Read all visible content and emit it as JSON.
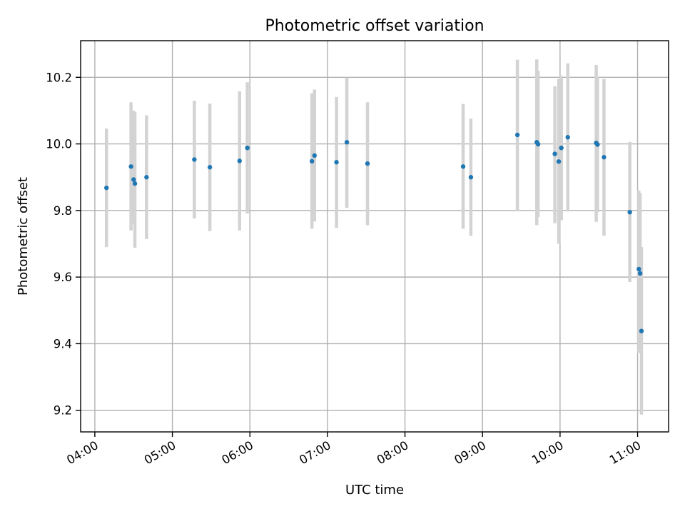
{
  "chart_data": {
    "type": "scatter",
    "title": "Photometric offset variation",
    "xlabel": "UTC time",
    "ylabel": "Photometric offset",
    "xlim": [
      "03:49",
      "11:24"
    ],
    "ylim": [
      9.135,
      10.31
    ],
    "x_ticks": [
      "04:00",
      "05:00",
      "06:00",
      "07:00",
      "08:00",
      "09:00",
      "10:00",
      "11:00"
    ],
    "y_ticks": [
      9.2,
      9.4,
      9.6,
      9.8,
      10.0,
      10.2
    ],
    "y_tick_labels": [
      "9.2",
      "9.4",
      "9.6",
      "9.8",
      "10.0",
      "10.2"
    ],
    "grid": true,
    "marker_color": "#1f77b4",
    "errorbar_color": "#d3d3d3",
    "points": [
      {
        "time": "04:09",
        "y": 9.868,
        "lo": 9.69,
        "hi": 10.046
      },
      {
        "time": "04:28",
        "y": 9.932,
        "lo": 9.74,
        "hi": 10.125
      },
      {
        "time": "04:30",
        "y": 9.893,
        "lo": 9.76,
        "hi": 10.1
      },
      {
        "time": "04:31",
        "y": 9.881,
        "lo": 9.688,
        "hi": 10.095
      },
      {
        "time": "04:40",
        "y": 9.9,
        "lo": 9.714,
        "hi": 10.086
      },
      {
        "time": "05:17",
        "y": 9.953,
        "lo": 9.776,
        "hi": 10.13
      },
      {
        "time": "05:29",
        "y": 9.93,
        "lo": 9.738,
        "hi": 10.121
      },
      {
        "time": "05:52",
        "y": 9.949,
        "lo": 9.74,
        "hi": 10.158
      },
      {
        "time": "05:58",
        "y": 9.988,
        "lo": 9.791,
        "hi": 10.185
      },
      {
        "time": "06:48",
        "y": 9.948,
        "lo": 9.745,
        "hi": 10.152
      },
      {
        "time": "06:50",
        "y": 9.965,
        "lo": 9.767,
        "hi": 10.163
      },
      {
        "time": "07:07",
        "y": 9.945,
        "lo": 9.748,
        "hi": 10.141
      },
      {
        "time": "07:15",
        "y": 10.005,
        "lo": 9.808,
        "hi": 10.199
      },
      {
        "time": "07:31",
        "y": 9.941,
        "lo": 9.756,
        "hi": 10.125
      },
      {
        "time": "08:45",
        "y": 9.932,
        "lo": 9.745,
        "hi": 10.12
      },
      {
        "time": "08:51",
        "y": 9.9,
        "lo": 9.724,
        "hi": 10.076
      },
      {
        "time": "09:27",
        "y": 10.027,
        "lo": 9.8,
        "hi": 10.253
      },
      {
        "time": "09:42",
        "y": 10.005,
        "lo": 9.756,
        "hi": 10.254
      },
      {
        "time": "09:43",
        "y": 9.999,
        "lo": 9.78,
        "hi": 10.22
      },
      {
        "time": "09:56",
        "y": 9.97,
        "lo": 9.762,
        "hi": 10.173
      },
      {
        "time": "09:59",
        "y": 9.947,
        "lo": 9.7,
        "hi": 10.195
      },
      {
        "time": "10:01",
        "y": 9.988,
        "lo": 9.771,
        "hi": 10.205
      },
      {
        "time": "10:06",
        "y": 10.02,
        "lo": 9.797,
        "hi": 10.242
      },
      {
        "time": "10:28",
        "y": 10.003,
        "lo": 9.766,
        "hi": 10.237
      },
      {
        "time": "10:29",
        "y": 9.998,
        "lo": 9.795,
        "hi": 10.2
      },
      {
        "time": "10:34",
        "y": 9.96,
        "lo": 9.724,
        "hi": 10.195
      },
      {
        "time": "10:54",
        "y": 9.795,
        "lo": 9.585,
        "hi": 10.006
      },
      {
        "time": "11:01",
        "y": 9.624,
        "lo": 9.372,
        "hi": 9.86
      },
      {
        "time": "11:02",
        "y": 9.611,
        "lo": 9.382,
        "hi": 9.852
      },
      {
        "time": "11:03",
        "y": 9.438,
        "lo": 9.187,
        "hi": 9.69
      }
    ]
  }
}
